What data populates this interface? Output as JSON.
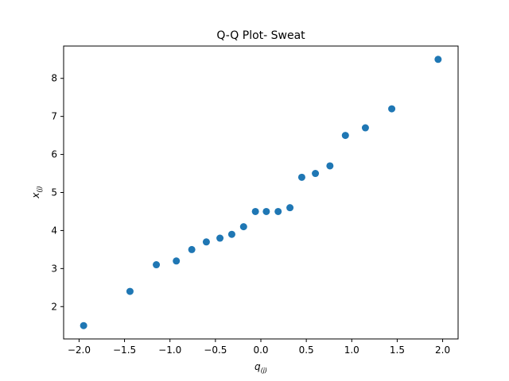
{
  "chart_data": {
    "type": "scatter",
    "title": "Q-Q Plot- Sweat",
    "xlabel": {
      "base": "q",
      "subscript": "(j)"
    },
    "ylabel": {
      "base": "x",
      "subscript": "(j)"
    },
    "xlim": [
      -2.17,
      2.17
    ],
    "ylim": [
      1.15,
      8.85
    ],
    "xticks": [
      -2.0,
      -1.5,
      -1.0,
      -0.5,
      0.0,
      0.5,
      1.0,
      1.5,
      2.0
    ],
    "xtick_labels": [
      "−2.0",
      "−1.5",
      "−1.0",
      "−0.5",
      "0.0",
      "0.5",
      "1.0",
      "1.5",
      "2.0"
    ],
    "yticks": [
      2,
      3,
      4,
      5,
      6,
      7,
      8
    ],
    "ytick_labels": [
      "2",
      "3",
      "4",
      "5",
      "6",
      "7",
      "8"
    ],
    "grid": false,
    "marker_color": "#1f77b4",
    "x": [
      -1.95,
      -1.44,
      -1.15,
      -0.93,
      -0.76,
      -0.6,
      -0.45,
      -0.32,
      -0.19,
      -0.06,
      0.06,
      0.19,
      0.32,
      0.45,
      0.6,
      0.76,
      0.93,
      1.15,
      1.44,
      1.95
    ],
    "y": [
      1.5,
      2.4,
      3.1,
      3.2,
      3.5,
      3.7,
      3.8,
      3.9,
      4.1,
      4.5,
      4.5,
      4.5,
      4.6,
      5.4,
      5.5,
      5.7,
      6.5,
      6.7,
      7.2,
      8.5
    ]
  }
}
